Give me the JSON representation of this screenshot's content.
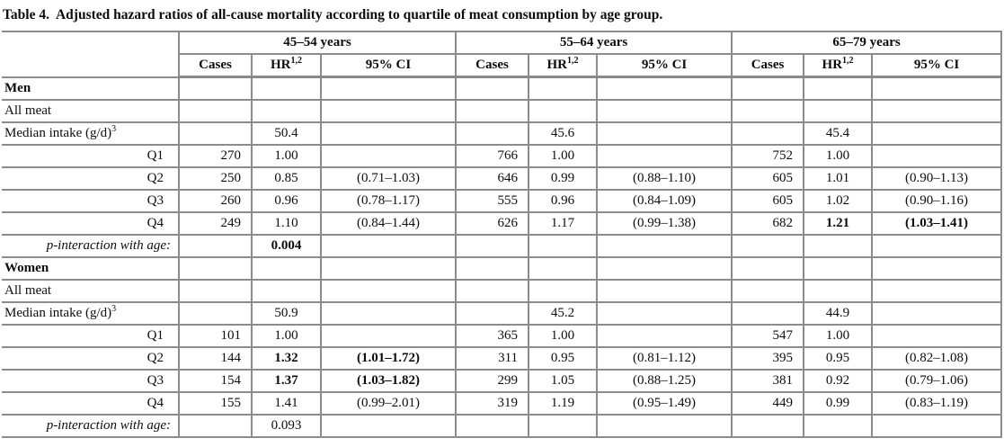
{
  "title": {
    "prefix": "Table 4.",
    "text": "Adjusted hazard ratios of all-cause mortality according to quartile of meat consumption by age group."
  },
  "table": {
    "age_groups": [
      "45–54 years",
      "55–64 years",
      "65–79 years"
    ],
    "sub_headers": {
      "cases": "Cases",
      "hr": "HR",
      "hr_sup": "1,2",
      "ci": "95% CI"
    },
    "rows": [
      {
        "label": "Men",
        "type": "section",
        "cells": [
          "",
          "",
          "",
          "",
          "",
          "",
          "",
          "",
          ""
        ]
      },
      {
        "label": "All meat",
        "type": "plain",
        "cells": [
          "",
          "",
          "",
          "",
          "",
          "",
          "",
          "",
          ""
        ]
      },
      {
        "label": "Median intake (g/d)",
        "label_sup": "3",
        "type": "median",
        "cells": [
          "",
          "50.4",
          "",
          "",
          "45.6",
          "",
          "",
          "45.4",
          ""
        ]
      },
      {
        "label": "Q1",
        "type": "quartile",
        "cells": [
          "270",
          "1.00",
          "",
          "766",
          "1.00",
          "",
          "752",
          "1.00",
          ""
        ]
      },
      {
        "label": "Q2",
        "type": "quartile",
        "cells": [
          "250",
          "0.85",
          "(0.71–1.03)",
          "646",
          "0.99",
          "(0.88–1.10)",
          "605",
          "1.01",
          "(0.90–1.13)"
        ]
      },
      {
        "label": "Q3",
        "type": "quartile",
        "cells": [
          "260",
          "0.96",
          "(0.78–1.17)",
          "555",
          "0.96",
          "(0.84–1.09)",
          "605",
          "1.02",
          "(0.90–1.16)"
        ]
      },
      {
        "label": "Q4",
        "type": "quartile",
        "cells": [
          "249",
          "1.10",
          "(0.84–1.44)",
          "626",
          "1.17",
          "(0.99–1.38)",
          "682",
          "1.21",
          "(1.03–1.41)"
        ],
        "bold": [
          7,
          8
        ]
      },
      {
        "label": "p-interaction with age:",
        "type": "pint",
        "cells": [
          "",
          "0.004",
          "",
          "",
          "",
          "",
          "",
          "",
          ""
        ],
        "bold": [
          1
        ]
      },
      {
        "label": "Women",
        "type": "section",
        "cells": [
          "",
          "",
          "",
          "",
          "",
          "",
          "",
          "",
          ""
        ]
      },
      {
        "label": "All meat",
        "type": "plain",
        "cells": [
          "",
          "",
          "",
          "",
          "",
          "",
          "",
          "",
          ""
        ]
      },
      {
        "label": "Median intake (g/d)",
        "label_sup": "3",
        "type": "median",
        "cells": [
          "",
          "50.9",
          "",
          "",
          "45.2",
          "",
          "",
          "44.9",
          ""
        ]
      },
      {
        "label": "Q1",
        "type": "quartile",
        "cells": [
          "101",
          "1.00",
          "",
          "365",
          "1.00",
          "",
          "547",
          "1.00",
          ""
        ]
      },
      {
        "label": "Q2",
        "type": "quartile",
        "cells": [
          "144",
          "1.32",
          "(1.01–1.72)",
          "311",
          "0.95",
          "(0.81–1.12)",
          "395",
          "0.95",
          "(0.82–1.08)"
        ],
        "bold": [
          1,
          2
        ]
      },
      {
        "label": "Q3",
        "type": "quartile",
        "cells": [
          "154",
          "1.37",
          "(1.03–1.82)",
          "299",
          "1.05",
          "(0.88–1.25)",
          "381",
          "0.92",
          "(0.79–1.06)"
        ],
        "bold": [
          1,
          2
        ]
      },
      {
        "label": "Q4",
        "type": "quartile",
        "cells": [
          "155",
          "1.41",
          "(0.99–2.01)",
          "319",
          "1.19",
          "(0.95–1.49)",
          "449",
          "0.99",
          "(0.83–1.19)"
        ]
      },
      {
        "label": "p-interaction with age:",
        "type": "pint",
        "cells": [
          "",
          "0.093",
          "",
          "",
          "",
          "",
          "",
          "",
          ""
        ]
      }
    ]
  }
}
